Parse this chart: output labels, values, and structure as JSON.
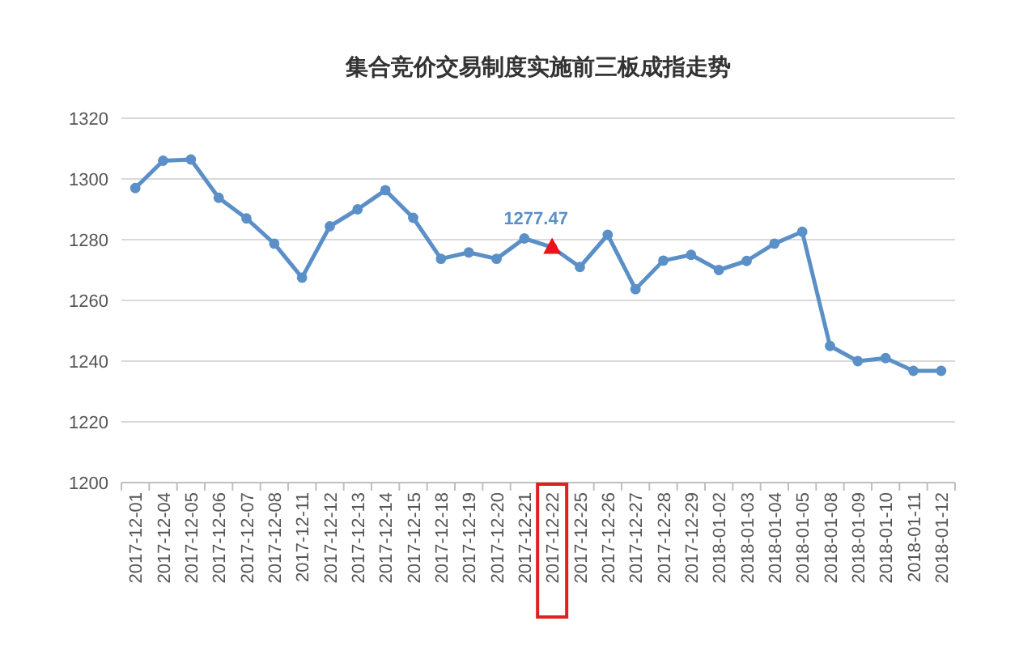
{
  "chart_data": {
    "type": "line",
    "title": "集合竞价交易制度实施前三板成指走势",
    "categories": [
      "2017-12-01",
      "2017-12-04",
      "2017-12-05",
      "2017-12-06",
      "2017-12-07",
      "2017-12-08",
      "2017-12-11",
      "2017-12-12",
      "2017-12-13",
      "2017-12-14",
      "2017-12-15",
      "2017-12-18",
      "2017-12-19",
      "2017-12-20",
      "2017-12-21",
      "2017-12-22",
      "2017-12-25",
      "2017-12-26",
      "2017-12-27",
      "2017-12-28",
      "2017-12-29",
      "2018-01-02",
      "2018-01-03",
      "2018-01-04",
      "2018-01-05",
      "2018-01-08",
      "2018-01-09",
      "2018-01-10",
      "2018-01-11",
      "2018-01-12"
    ],
    "series": [
      {
        "color": "#5b8fc7",
        "values": [
          1297,
          1306,
          1306.4,
          1293.8,
          1287,
          1278.7,
          1267.5,
          1284.4,
          1290,
          1296.3,
          1287.2,
          1273.7,
          1275.8,
          1273.7,
          1280.4,
          1277.47,
          1271,
          1281.6,
          1263.7,
          1273.1,
          1275,
          1270,
          1273,
          1278.7,
          1282.6,
          1245,
          1240,
          1241,
          1236.8,
          1236.8
        ]
      }
    ],
    "ylim": [
      1200,
      1320
    ],
    "yticks": [
      1200,
      1220,
      1240,
      1260,
      1280,
      1300,
      1320
    ],
    "grid": "y",
    "marker": "circle",
    "line_style": "solid",
    "annotations": [
      {
        "text": "1277.47",
        "x": "2017-12-22",
        "y": 1277.47
      }
    ]
  }
}
